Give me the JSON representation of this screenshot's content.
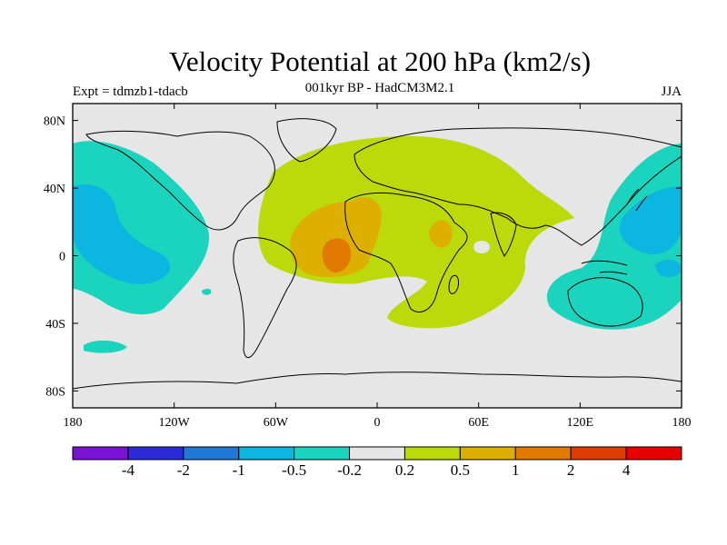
{
  "title": "Velocity Potential at 200 hPa (km2/s)",
  "subtitle": "001kyr BP - HadCM3M2.1",
  "left_label": "Expt = tdmzb1-tdacb",
  "right_label": "JJA",
  "map": {
    "lon_range": [
      -180,
      180
    ],
    "lat_range": [
      -90,
      90
    ],
    "background_color": "#e6e6e6",
    "lat_ticks": [
      {
        "lat": 80,
        "label": "80N"
      },
      {
        "lat": 40,
        "label": "40N"
      },
      {
        "lat": 0,
        "label": "0"
      },
      {
        "lat": -40,
        "label": "40S"
      },
      {
        "lat": -80,
        "label": "80S"
      }
    ],
    "lon_ticks": [
      {
        "lon": -180,
        "label": "180"
      },
      {
        "lon": -120,
        "label": "120W"
      },
      {
        "lon": -60,
        "label": "60W"
      },
      {
        "lon": 0,
        "label": "0"
      },
      {
        "lon": 60,
        "label": "60E"
      },
      {
        "lon": 120,
        "label": "120E"
      },
      {
        "lon": 180,
        "label": "180"
      }
    ]
  },
  "colorbar": {
    "colors": [
      "#7a13d6",
      "#2a2ad8",
      "#1f78d4",
      "#0bb6e0",
      "#1ad4bd",
      "#e6e6e6",
      "#bcd90a",
      "#ddb000",
      "#e07a00",
      "#e03b00",
      "#e80000"
    ],
    "labels": [
      "-4",
      "-2",
      "-1",
      "-0.5",
      "-0.2",
      "0.2",
      "0.5",
      "1",
      "2",
      "4"
    ]
  }
}
